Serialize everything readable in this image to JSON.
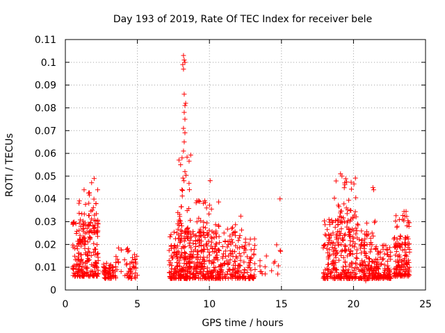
{
  "chart_data": {
    "type": "scatter",
    "title": "Day 193 of 2019, Rate Of TEC Index for receiver bele",
    "xlabel": "GPS time / hours",
    "ylabel": "ROTI / TECUs",
    "xlim": [
      0,
      25
    ],
    "ylim": [
      0,
      0.11
    ],
    "x_ticks": [
      "0",
      "5",
      "10",
      "15",
      "20",
      "25"
    ],
    "y_ticks": [
      "0",
      "0.01",
      "0.02",
      "0.03",
      "0.04",
      "0.05",
      "0.06",
      "0.07",
      "0.08",
      "0.09",
      "0.1",
      "0.11"
    ],
    "grid": true,
    "marker": "+",
    "color": "#ff0000",
    "clusters": [
      {
        "x": [
          0.5,
          2.3
        ],
        "y": [
          0.006,
          0.034
        ],
        "n": 200
      },
      {
        "x": [
          0.9,
          1.4
        ],
        "y": [
          0.02,
          0.044
        ],
        "n": 20
      },
      {
        "x": [
          1.6,
          2.3
        ],
        "y": [
          0.025,
          0.049
        ],
        "n": 35
      },
      {
        "x": [
          2.6,
          3.5
        ],
        "y": [
          0.005,
          0.012
        ],
        "n": 60
      },
      {
        "x": [
          3.5,
          3.9
        ],
        "y": [
          0.008,
          0.026
        ],
        "n": 10
      },
      {
        "x": [
          4.1,
          5.0
        ],
        "y": [
          0.005,
          0.019
        ],
        "n": 45
      },
      {
        "x": [
          7.2,
          10.8
        ],
        "y": [
          0.005,
          0.026
        ],
        "n": 420
      },
      {
        "x": [
          7.8,
          8.7
        ],
        "y": [
          0.025,
          0.06
        ],
        "n": 40
      },
      {
        "x": [
          9.0,
          10.7
        ],
        "y": [
          0.025,
          0.04
        ],
        "n": 35
      },
      {
        "x": [
          10.8,
          13.2
        ],
        "y": [
          0.005,
          0.025
        ],
        "n": 160
      },
      {
        "x": [
          11.0,
          12.3
        ],
        "y": [
          0.025,
          0.033
        ],
        "n": 10
      },
      {
        "x": [
          13.5,
          14.0
        ],
        "y": [
          0.007,
          0.016
        ],
        "n": 8
      },
      {
        "x": [
          14.3,
          15.0
        ],
        "y": [
          0.007,
          0.021
        ],
        "n": 8
      },
      {
        "x": [
          17.9,
          20.5
        ],
        "y": [
          0.005,
          0.032
        ],
        "n": 260
      },
      {
        "x": [
          18.6,
          20.2
        ],
        "y": [
          0.03,
          0.05
        ],
        "n": 40
      },
      {
        "x": [
          20.5,
          22.6
        ],
        "y": [
          0.005,
          0.02
        ],
        "n": 200
      },
      {
        "x": [
          20.5,
          21.5
        ],
        "y": [
          0.02,
          0.031
        ],
        "n": 20
      },
      {
        "x": [
          22.8,
          23.9
        ],
        "y": [
          0.006,
          0.02
        ],
        "n": 110
      },
      {
        "x": [
          22.8,
          23.9
        ],
        "y": [
          0.02,
          0.035
        ],
        "n": 40
      }
    ],
    "points": [
      [
        8.2,
        0.103
      ],
      [
        8.25,
        0.101
      ],
      [
        8.15,
        0.099
      ],
      [
        8.2,
        0.097
      ],
      [
        8.3,
        0.1
      ],
      [
        8.25,
        0.086
      ],
      [
        8.35,
        0.082
      ],
      [
        8.3,
        0.081
      ],
      [
        8.25,
        0.078
      ],
      [
        8.3,
        0.075
      ],
      [
        8.2,
        0.071
      ],
      [
        8.3,
        0.069
      ],
      [
        8.25,
        0.065
      ],
      [
        8.2,
        0.061
      ],
      [
        8.1,
        0.058
      ],
      [
        8.0,
        0.055
      ],
      [
        8.3,
        0.052
      ],
      [
        10.05,
        0.048
      ],
      [
        14.9,
        0.04
      ],
      [
        21.35,
        0.045
      ],
      [
        21.4,
        0.044
      ],
      [
        19.1,
        0.051
      ],
      [
        19.2,
        0.05
      ],
      [
        20.85,
        0.004
      ],
      [
        12.5,
        0.005
      ],
      [
        18.3,
        0.031
      ],
      [
        2.0,
        0.049
      ],
      [
        1.3,
        0.044
      ]
    ]
  }
}
